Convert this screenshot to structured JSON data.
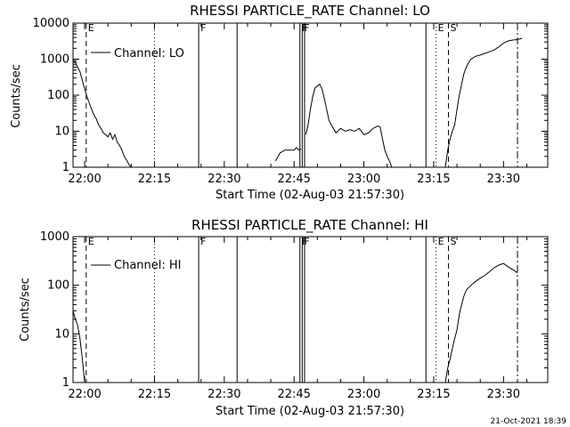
{
  "footer_timestamp": "21-Oct-2021 18:39",
  "colors": {
    "background": "#ffffff",
    "ink": "#000000"
  },
  "chart_data": [
    {
      "type": "line",
      "title": "RHESSI PARTICLE_RATE Channel: LO",
      "xlabel": "Start Time (02-Aug-03 21:57:30)",
      "ylabel": "Counts/sec",
      "y_scale": "log",
      "ylim": [
        1,
        10000
      ],
      "xlim": [
        "21:57:30",
        "23:39:30"
      ],
      "x_ticks": [
        "22:00",
        "22:15",
        "22:30",
        "22:45",
        "23:00",
        "23:15",
        "23:30"
      ],
      "y_ticks": [
        "1",
        "10",
        "100",
        "1000",
        "10000"
      ],
      "legend": {
        "position": "top-left",
        "entries": [
          "Channel: LO"
        ]
      },
      "markers": [
        {
          "time": "22:00:20",
          "style": "dashed",
          "label": "E"
        },
        {
          "time": "22:15:00",
          "style": "dotted",
          "label": ""
        },
        {
          "time": "22:24:30",
          "style": "solid",
          "label": "F"
        },
        {
          "time": "22:32:45",
          "style": "solid",
          "label": ""
        },
        {
          "time": "22:46:15",
          "style": "solid",
          "label": "F"
        },
        {
          "time": "22:46:45",
          "style": "solid",
          "label": "F"
        },
        {
          "time": "22:47:15",
          "style": "solid",
          "label": ""
        },
        {
          "time": "23:13:20",
          "style": "solid",
          "label": ""
        },
        {
          "time": "23:15:30",
          "style": "dotted",
          "label": "E"
        },
        {
          "time": "23:18:10",
          "style": "dashed",
          "label": "S"
        },
        {
          "time": "23:33:00",
          "style": "dashdot",
          "label": ""
        }
      ],
      "series": [
        {
          "segments": [
            {
              "x": [
                "21:57:30",
                "21:58:00",
                "21:58:30",
                "21:59:00",
                "21:59:30",
                "22:00:00",
                "22:00:30",
                "22:01:00",
                "22:01:30",
                "22:02:00",
                "22:02:30",
                "22:03:00",
                "22:03:30",
                "22:04:00",
                "22:04:30",
                "22:05:00",
                "22:05:30",
                "22:06:00",
                "22:06:30",
                "22:07:00",
                "22:07:30",
                "22:08:00",
                "22:08:30",
                "22:09:00",
                "22:09:30",
                "22:10:00"
              ],
              "y": [
                1000,
                800,
                600,
                450,
                250,
                150,
                90,
                60,
                40,
                28,
                22,
                15,
                12,
                9,
                8,
                7,
                9,
                6,
                8,
                5,
                4,
                3,
                2,
                1.6,
                1.2,
                1
              ]
            },
            {
              "x": [
                "22:41:00",
                "22:42:00",
                "22:43:00",
                "22:44:00",
                "22:45:00",
                "22:45:30",
                "22:46:00",
                "22:46:30"
              ],
              "y": [
                1.5,
                2.5,
                3,
                3,
                3,
                3.5,
                3,
                3.2
              ]
            },
            {
              "x": [
                "22:47:30",
                "22:48:00",
                "22:48:30",
                "22:49:00",
                "22:49:30",
                "22:50:00",
                "22:50:30",
                "22:51:00",
                "22:51:30",
                "22:52:00",
                "22:52:30",
                "22:53:00",
                "22:54:00",
                "22:55:00",
                "22:56:00",
                "22:57:00",
                "22:58:00",
                "22:59:00",
                "23:00:00",
                "23:01:00",
                "23:02:00",
                "23:03:00",
                "23:03:30",
                "23:04:00",
                "23:04:30",
                "23:05:00",
                "23:05:30",
                "23:06:00"
              ],
              "y": [
                8,
                15,
                40,
                90,
                160,
                180,
                200,
                150,
                80,
                40,
                20,
                15,
                9,
                12,
                10,
                11,
                10,
                12,
                8,
                9,
                12,
                14,
                13,
                6,
                3,
                2,
                1.5,
                1
              ]
            },
            {
              "x": [
                "23:17:30",
                "23:18:00",
                "23:18:30",
                "23:19:00",
                "23:19:30",
                "23:20:00",
                "23:20:30",
                "23:21:00",
                "23:21:30",
                "23:22:00",
                "23:22:30",
                "23:23:00",
                "23:24:00",
                "23:25:00",
                "23:26:00",
                "23:27:00",
                "23:28:00",
                "23:29:00",
                "23:30:00",
                "23:31:00",
                "23:32:00",
                "23:33:00",
                "23:34:00"
              ],
              "y": [
                1,
                3,
                6,
                10,
                15,
                40,
                100,
                200,
                400,
                600,
                800,
                1000,
                1200,
                1300,
                1450,
                1600,
                1800,
                2200,
                2800,
                3200,
                3400,
                3500,
                3800
              ]
            }
          ]
        }
      ]
    },
    {
      "type": "line",
      "title": "RHESSI PARTICLE_RATE Channel: HI",
      "xlabel": "Start Time (02-Aug-03 21:57:30)",
      "ylabel": "Counts/sec",
      "y_scale": "log",
      "ylim": [
        1,
        1000
      ],
      "xlim": [
        "21:57:30",
        "23:39:30"
      ],
      "x_ticks": [
        "22:00",
        "22:15",
        "22:30",
        "22:45",
        "23:00",
        "23:15",
        "23:30"
      ],
      "y_ticks": [
        "1",
        "10",
        "100",
        "1000"
      ],
      "legend": {
        "position": "top-left",
        "entries": [
          "Channel: HI"
        ]
      },
      "markers": [
        {
          "time": "22:00:20",
          "style": "dashed",
          "label": "E"
        },
        {
          "time": "22:15:00",
          "style": "dotted",
          "label": ""
        },
        {
          "time": "22:24:30",
          "style": "solid",
          "label": "F"
        },
        {
          "time": "22:32:45",
          "style": "solid",
          "label": ""
        },
        {
          "time": "22:46:15",
          "style": "solid",
          "label": "F"
        },
        {
          "time": "22:46:45",
          "style": "solid",
          "label": "F"
        },
        {
          "time": "22:47:15",
          "style": "solid",
          "label": ""
        },
        {
          "time": "23:13:20",
          "style": "solid",
          "label": ""
        },
        {
          "time": "23:15:30",
          "style": "dotted",
          "label": "E"
        },
        {
          "time": "23:18:10",
          "style": "dashed",
          "label": "S"
        },
        {
          "time": "23:33:00",
          "style": "dashdot",
          "label": ""
        }
      ],
      "series": [
        {
          "segments": [
            {
              "x": [
                "21:57:30",
                "21:58:00",
                "21:58:30",
                "21:59:00",
                "21:59:30",
                "22:00:00"
              ],
              "y": [
                30,
                20,
                15,
                8,
                3,
                1
              ]
            },
            {
              "x": [
                "23:17:30",
                "23:18:00",
                "23:18:30",
                "23:19:00",
                "23:19:30",
                "23:20:00",
                "23:20:30",
                "23:21:00",
                "23:21:30",
                "23:22:00",
                "23:23:00",
                "23:24:00",
                "23:25:00",
                "23:26:00",
                "23:27:00",
                "23:28:00",
                "23:29:00",
                "23:30:00",
                "23:31:00",
                "23:32:00",
                "23:33:00"
              ],
              "y": [
                1,
                2,
                3,
                5,
                8,
                12,
                25,
                40,
                60,
                80,
                100,
                120,
                140,
                160,
                190,
                230,
                260,
                280,
                240,
                210,
                180
              ]
            }
          ]
        }
      ]
    }
  ]
}
